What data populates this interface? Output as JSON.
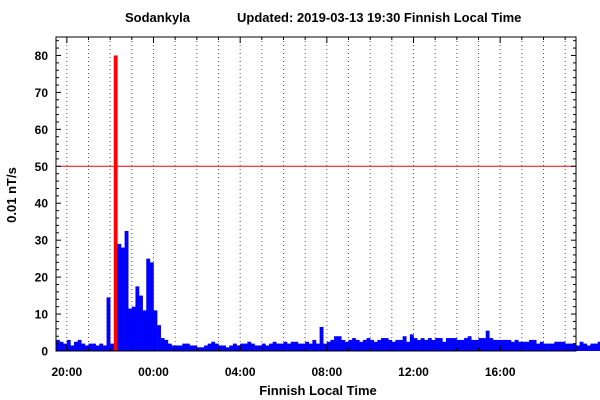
{
  "chart_data": {
    "type": "bar",
    "station": "Sodankyla",
    "updated": "Updated: 2019-03-13 19:30 Finnish Local Time",
    "xlabel": "Finnish Local Time",
    "ylabel": "0.01 nT/s",
    "x_range_hours": [
      19.5,
      43.5
    ],
    "ylim": [
      0,
      85
    ],
    "y_ticks": [
      0,
      10,
      20,
      30,
      40,
      50,
      60,
      70,
      80
    ],
    "x_ticks": [
      {
        "hour": 20,
        "label": "20:00"
      },
      {
        "hour": 24,
        "label": "00:00"
      },
      {
        "hour": 28,
        "label": "04:00"
      },
      {
        "hour": 32,
        "label": "08:00"
      },
      {
        "hour": 36,
        "label": "12:00"
      },
      {
        "hour": 40,
        "label": "16:00"
      }
    ],
    "threshold": 50,
    "grid": "vertical dotted, hourly",
    "colors": {
      "bar": "#0000ff",
      "highlight": "#ff0000",
      "threshold": "#ff0000",
      "grid": "#555555"
    },
    "bin_minutes": 10,
    "start_time": "19:30",
    "highlight_bins": [
      16
    ],
    "values": [
      3,
      2.5,
      2,
      3,
      1.5,
      2.5,
      3,
      2,
      1.5,
      2,
      2,
      1.5,
      2,
      1.5,
      14.5,
      2,
      80,
      29,
      28,
      32.5,
      11.5,
      12,
      17.5,
      15,
      11,
      25,
      24,
      11,
      7,
      3.5,
      3,
      2,
      1.5,
      1.5,
      1.5,
      2,
      2,
      1.5,
      1.5,
      1,
      1,
      1.5,
      2,
      2.5,
      2,
      1.5,
      1.5,
      1,
      1.5,
      2,
      1.5,
      2,
      2,
      2.5,
      2,
      1.5,
      1.5,
      2,
      1.5,
      2,
      2.5,
      2,
      2,
      2.5,
      2,
      2.5,
      2.5,
      2,
      2,
      2.5,
      2,
      3,
      2,
      6.5,
      2,
      2.5,
      3,
      4,
      4,
      3,
      2.5,
      3,
      3.5,
      3,
      2.5,
      3,
      3.5,
      3,
      2.5,
      3,
      3.5,
      3.5,
      3,
      2.5,
      3,
      3,
      4,
      2.5,
      4.5,
      3.5,
      3,
      3.5,
      3,
      3.5,
      3,
      3.5,
      3.5,
      2.5,
      3.5,
      3.5,
      3.5,
      3,
      3,
      3.5,
      4,
      3,
      3,
      3.5,
      3.5,
      5.5,
      3.5,
      3,
      3,
      3,
      3,
      3,
      2.5,
      3,
      2.5,
      2.5,
      2.5,
      3,
      3,
      2,
      2.5,
      2,
      2,
      2,
      2.5,
      2.5,
      2.5,
      2,
      2,
      2,
      1.5,
      2.5,
      2,
      1.5,
      2,
      2,
      2.5,
      2,
      2.5,
      2.5,
      2.5,
      1.5,
      2,
      2.5,
      2,
      2,
      2.5,
      2,
      2,
      2,
      2,
      2,
      2,
      2,
      2,
      2,
      2,
      2,
      2,
      2,
      2,
      2,
      2,
      2,
      2,
      2,
      1.5,
      2,
      2,
      2,
      2,
      2,
      2,
      2,
      1.5,
      2,
      2,
      2,
      2,
      2,
      2,
      2,
      2,
      2,
      2,
      2,
      2,
      2,
      2,
      2,
      2,
      2,
      2,
      2,
      2,
      2,
      2,
      2,
      2,
      2,
      2,
      2,
      2,
      2,
      2,
      2,
      2,
      2,
      2,
      2,
      2,
      2,
      2,
      2,
      2,
      2,
      2,
      2,
      2,
      2,
      2,
      2,
      2,
      2
    ]
  }
}
